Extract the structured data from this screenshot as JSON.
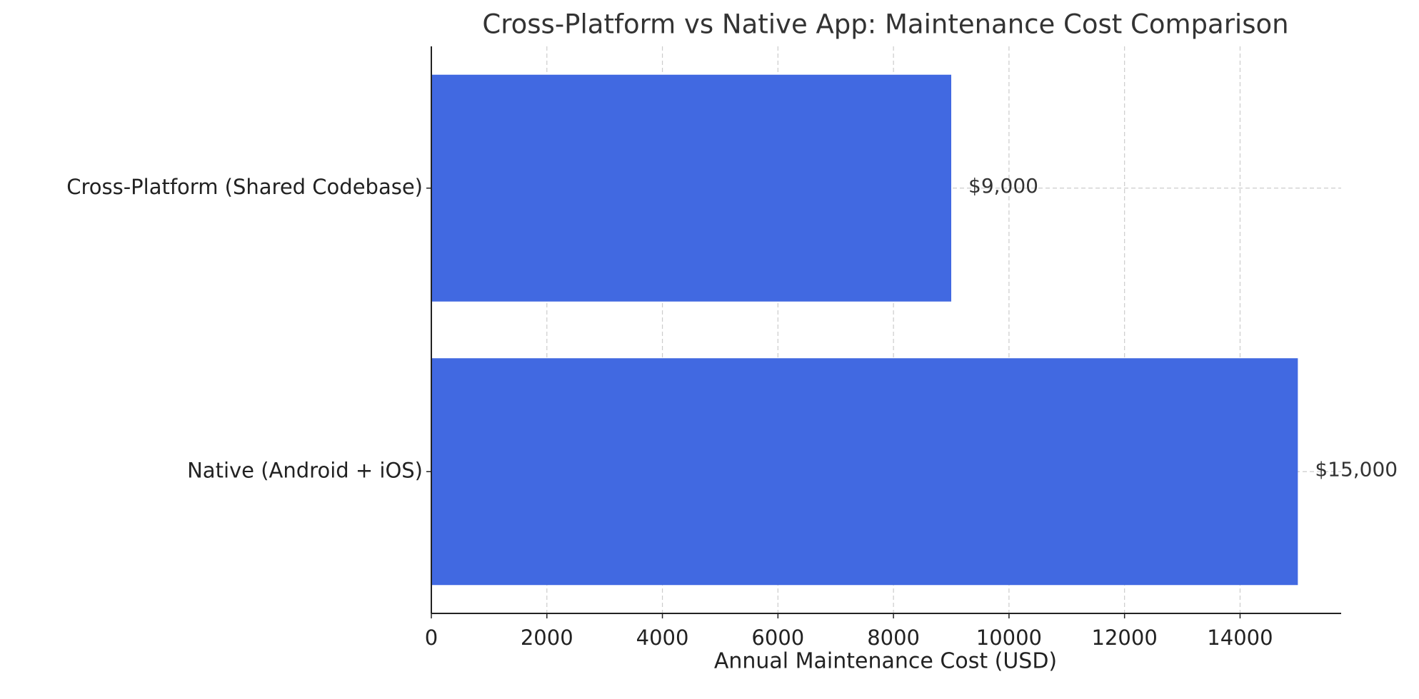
{
  "chart_data": {
    "type": "barh",
    "title": "Cross-Platform vs Native App: Maintenance Cost Comparison",
    "x_label": "Annual Maintenance Cost (USD)",
    "categories": [
      "Cross-Platform (Shared Codebase)",
      "Native (Android + iOS)"
    ],
    "values": [
      9000,
      15000
    ],
    "value_labels": [
      "$9,000",
      "$15,000"
    ],
    "color": "#4169e1",
    "xlim": [
      0,
      15750
    ],
    "xticks": [
      0,
      2000,
      4000,
      6000,
      8000,
      10000,
      12000,
      14000
    ],
    "grid": true
  }
}
